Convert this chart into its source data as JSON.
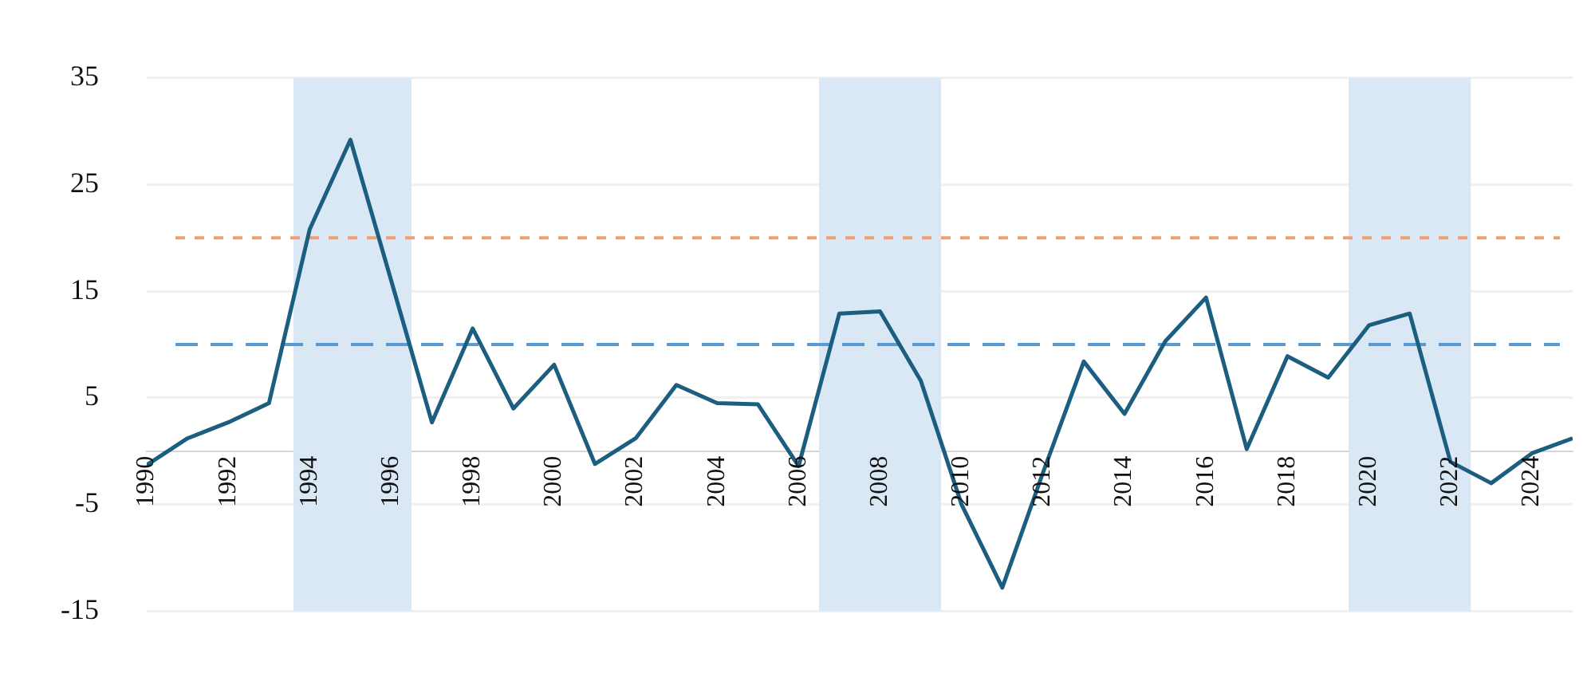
{
  "chart_data": {
    "type": "line",
    "x": [
      1990,
      1991,
      1992,
      1993,
      1994,
      1995,
      1996,
      1997,
      1998,
      1999,
      2000,
      2001,
      2002,
      2003,
      2004,
      2005,
      2006,
      2007,
      2008,
      2009,
      2010,
      2011,
      2012,
      2013,
      2014,
      2015,
      2016,
      2017,
      2018,
      2019,
      2020,
      2021,
      2022,
      2023,
      2024,
      2025
    ],
    "series": [
      {
        "color": "#1b5e80",
        "values": [
          -1.3,
          1.2,
          2.7,
          4.5,
          20.8,
          29.2,
          16,
          2.7,
          11.5,
          4.0,
          8.1,
          -1.2,
          1.2,
          6.2,
          4.5,
          4.4,
          -1.4,
          12.9,
          13.1,
          6.6,
          -5,
          -12.8,
          -2,
          8.4,
          3.5,
          10.3,
          14.4,
          0.2,
          8.9,
          6.9,
          11.8,
          12.9,
          -1.0,
          -3.0,
          -0.2,
          1.2
        ]
      }
    ],
    "xlim": [
      1990,
      2025
    ],
    "xticks": [
      1990,
      1992,
      1994,
      1996,
      1998,
      2000,
      2002,
      2004,
      2006,
      2008,
      2010,
      2012,
      2014,
      2016,
      2018,
      2020,
      2022,
      2024
    ],
    "ylim": [
      -15,
      35
    ],
    "yticks": [
      -15,
      -5,
      5,
      15,
      25,
      35
    ],
    "grid": "y",
    "legend": false,
    "marker": "none",
    "line_style": "solid",
    "ref_lines": [
      {
        "axis": "y",
        "value": 20,
        "color": "#f0a070",
        "line_style": "dotted"
      },
      {
        "axis": "y",
        "value": 10,
        "color": "#5b9bd5",
        "line_style": "dashed"
      }
    ],
    "bands": [
      {
        "axis": "x",
        "from": 1993.6,
        "to": 1996.5,
        "color": "#dae8f5"
      },
      {
        "axis": "x",
        "from": 2006.5,
        "to": 2009.5,
        "color": "#dae8f5"
      },
      {
        "axis": "x",
        "from": 2019.5,
        "to": 2022.5,
        "color": "#dae8f5"
      }
    ]
  }
}
